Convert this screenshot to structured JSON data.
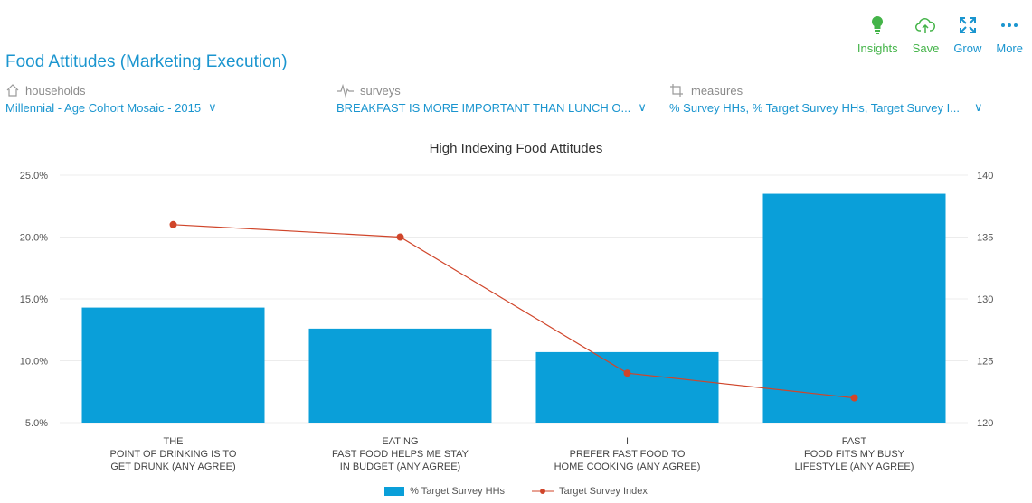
{
  "toolbar": {
    "insights_label": "Insights",
    "save_label": "Save",
    "grow_label": "Grow",
    "more_label": "More"
  },
  "page": {
    "title": "Food Attitudes (Marketing Execution)"
  },
  "filters": {
    "households": {
      "label": "households",
      "value": "Millennial - Age Cohort Mosaic - 2015"
    },
    "surveys": {
      "label": "surveys",
      "value": "BREAKFAST IS MORE IMPORTANT THAN LUNCH O..."
    },
    "measures": {
      "label": "measures",
      "value": "% Survey HHs, % Target Survey HHs, Target Survey I..."
    }
  },
  "colors": {
    "bar": "#0a9fd9",
    "line": "#d0452a",
    "accent": "#1a95cf",
    "green": "#44b449"
  },
  "chart_data": {
    "type": "bar",
    "title": "High Indexing Food Attitudes",
    "categories": [
      [
        "THE",
        "POINT OF DRINKING IS TO",
        "GET DRUNK (ANY AGREE)"
      ],
      [
        "EATING",
        "FAST FOOD HELPS ME STAY",
        "IN BUDGET (ANY AGREE)"
      ],
      [
        "I",
        "PREFER FAST FOOD TO",
        "HOME COOKING (ANY AGREE)"
      ],
      [
        "FAST",
        "FOOD FITS MY BUSY",
        "LIFESTYLE (ANY AGREE)"
      ]
    ],
    "series": [
      {
        "name": "% Target Survey HHs",
        "type": "bar",
        "axis": "left",
        "values": [
          14.3,
          12.6,
          10.7,
          23.5
        ]
      },
      {
        "name": "Target Survey Index",
        "type": "line",
        "axis": "right",
        "values": [
          136,
          135,
          124,
          122
        ]
      }
    ],
    "y_left": {
      "range": [
        5,
        25
      ],
      "ticks": [
        "25.0%",
        "20.0%",
        "15.0%",
        "10.0%",
        "5.0%"
      ]
    },
    "y_right": {
      "range": [
        120,
        140
      ],
      "ticks": [
        "140",
        "135",
        "130",
        "125",
        "120"
      ]
    },
    "legend": {
      "position": "bottom-center"
    }
  }
}
